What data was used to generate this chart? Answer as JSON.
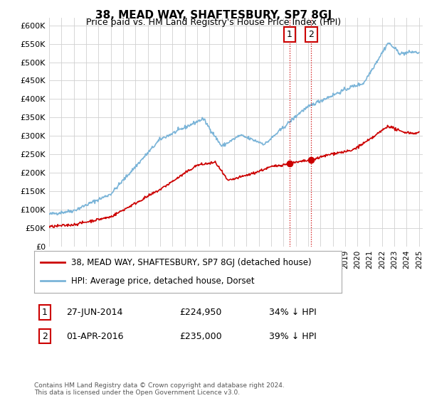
{
  "title": "38, MEAD WAY, SHAFTESBURY, SP7 8GJ",
  "subtitle": "Price paid vs. HM Land Registry's House Price Index (HPI)",
  "ylabel_ticks": [
    "£0",
    "£50K",
    "£100K",
    "£150K",
    "£200K",
    "£250K",
    "£300K",
    "£350K",
    "£400K",
    "£450K",
    "£500K",
    "£550K",
    "£600K"
  ],
  "ytick_values": [
    0,
    50000,
    100000,
    150000,
    200000,
    250000,
    300000,
    350000,
    400000,
    450000,
    500000,
    550000,
    600000
  ],
  "hpi_color": "#7ab4d8",
  "price_color": "#cc0000",
  "vline_color": "#cc0000",
  "annotation1": {
    "label": "1",
    "date_str": "27-JUN-2014",
    "price": "£224,950",
    "pct": "34% ↓ HPI"
  },
  "annotation2": {
    "label": "2",
    "date_str": "01-APR-2016",
    "price": "£235,000",
    "pct": "39% ↓ HPI"
  },
  "legend_line1": "38, MEAD WAY, SHAFTESBURY, SP7 8GJ (detached house)",
  "legend_line2": "HPI: Average price, detached house, Dorset",
  "footer": "Contains HM Land Registry data © Crown copyright and database right 2024.\nThis data is licensed under the Open Government Licence v3.0.",
  "xlim_start": 1995.0,
  "xlim_end": 2025.3,
  "ylim_min": 0,
  "ylim_max": 620000,
  "date1_x": 2014.5,
  "date2_x": 2016.25,
  "price1_y": 224950,
  "price2_y": 235000
}
